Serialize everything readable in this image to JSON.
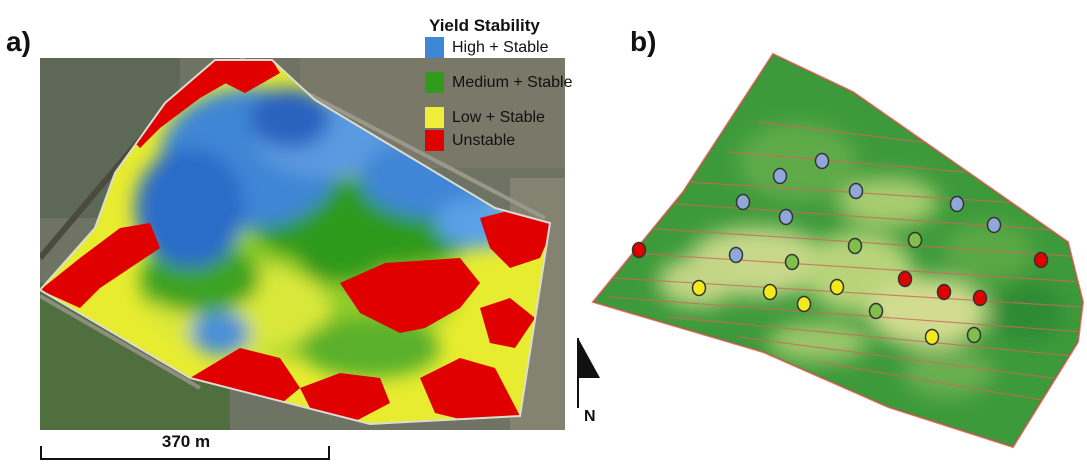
{
  "panels": {
    "a": "a)",
    "b": "b)"
  },
  "legend": {
    "title": "Yield Stability",
    "items": [
      {
        "label": "High + Stable",
        "color": "#3f86d6"
      },
      {
        "label": "Medium + Stable",
        "color": "#2f9a1c"
      },
      {
        "label": "Low + Stable",
        "color": "#f0ee3a"
      },
      {
        "label": "Unstable",
        "color": "#e00000"
      }
    ]
  },
  "scale_bar": {
    "label": "370 m"
  },
  "north_arrow": {
    "label": "N"
  },
  "sample_points": {
    "colors": {
      "high": "#8fa8d8",
      "medium": "#7fbf4a",
      "low": "#f2ea1c",
      "unstable": "#e00000"
    }
  }
}
